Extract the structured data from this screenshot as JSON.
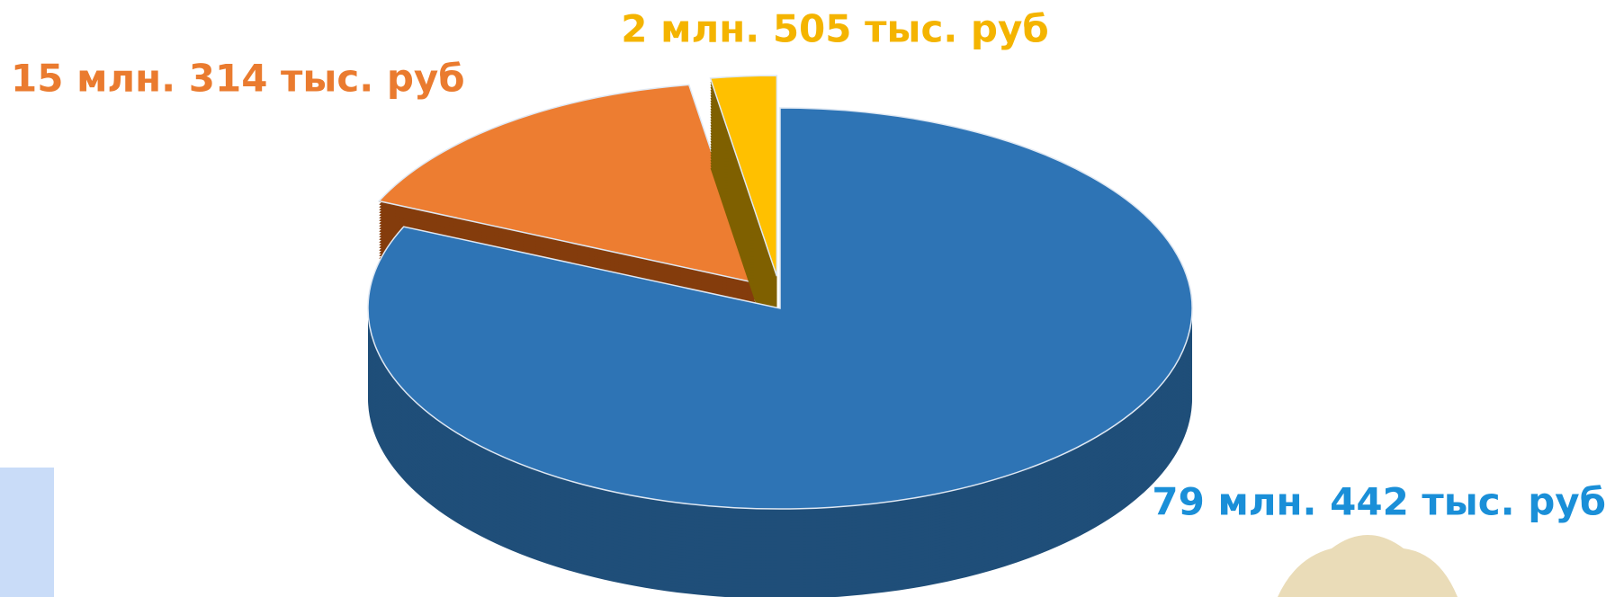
{
  "chart_data": {
    "type": "pie",
    "values": [
      79442000,
      15314000,
      2505000
    ],
    "value_labels": [
      "79 млн. 442 тыс. руб",
      "15 млн. 314 тыс. руб",
      "2 млн. 505 тыс. руб"
    ],
    "colors": [
      "#2e74b5",
      "#ed7d31",
      "#ffc000"
    ],
    "side_colors": [
      "#1f4e79",
      "#843c0c",
      "#7f6000"
    ],
    "label_colors": [
      "#1a8fd8",
      "#ea7b2f",
      "#f4b400"
    ]
  }
}
